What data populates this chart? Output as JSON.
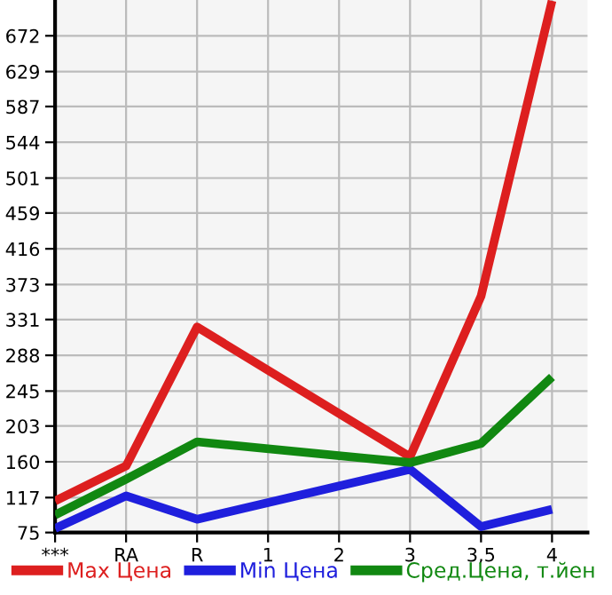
{
  "chart_data": {
    "type": "line",
    "categories": [
      "***",
      "RA",
      "R",
      "1",
      "2",
      "3",
      "3,5",
      "4"
    ],
    "series": [
      {
        "name": "Max Цена",
        "color": "#dd1f1f",
        "values": [
          113,
          155,
          322,
          null,
          null,
          166,
          359,
          714
        ]
      },
      {
        "name": "Min Цена",
        "color": "#1f1fdd",
        "values": [
          80,
          119,
          91,
          null,
          null,
          151,
          82,
          103
        ]
      },
      {
        "name": "Сред.Цена, т.йен",
        "color": "#118811",
        "values": [
          96,
          139,
          184,
          null,
          null,
          159,
          182,
          262
        ]
      }
    ],
    "ylim": [
      75,
      715
    ],
    "yticks": [
      75,
      117,
      160,
      203,
      245,
      288,
      331,
      373,
      416,
      459,
      501,
      544,
      587,
      629,
      672
    ],
    "grid": true,
    "legend": "bottom",
    "marker": "none",
    "line_style": "solid"
  }
}
